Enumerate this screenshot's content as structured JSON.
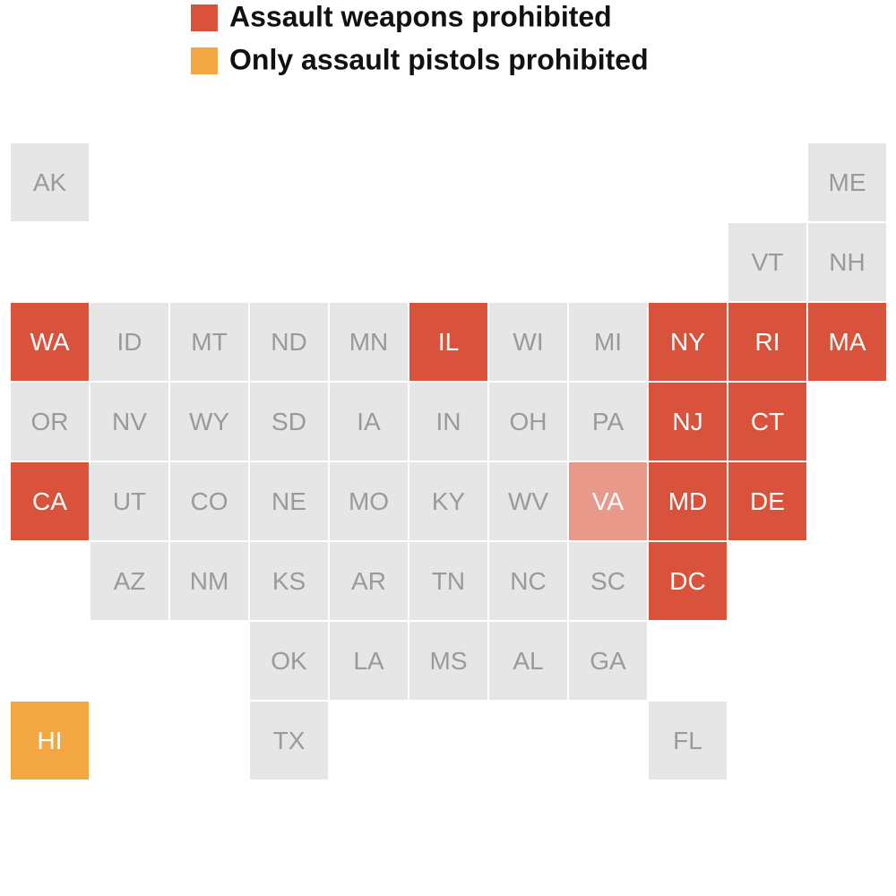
{
  "legend": [
    {
      "label": "Assault weapons prohibited",
      "color": "#d9533c"
    },
    {
      "label": "Only assault pistols prohibited",
      "color": "#f3a743"
    }
  ],
  "tiles": [
    {
      "label": "AK",
      "color": "#e6e6e6"
    },
    {
      "label": "ME",
      "color": "#e6e6e6"
    },
    {
      "label": "VT",
      "color": "#e6e6e6"
    },
    {
      "label": "NH",
      "color": "#e6e6e6"
    },
    {
      "label": "WA",
      "color": "#d9533c"
    },
    {
      "label": "ID",
      "color": "#e6e6e6"
    },
    {
      "label": "MT",
      "color": "#e6e6e6"
    },
    {
      "label": "ND",
      "color": "#e6e6e6"
    },
    {
      "label": "MN",
      "color": "#e6e6e6"
    },
    {
      "label": "IL",
      "color": "#d9533c"
    },
    {
      "label": "WI",
      "color": "#e6e6e6"
    },
    {
      "label": "MI",
      "color": "#e6e6e6"
    },
    {
      "label": "NY",
      "color": "#d9533c"
    },
    {
      "label": "RI",
      "color": "#d9533c"
    },
    {
      "label": "MA",
      "color": "#d9533c"
    },
    {
      "label": "OR",
      "color": "#e6e6e6"
    },
    {
      "label": "NV",
      "color": "#e6e6e6"
    },
    {
      "label": "WY",
      "color": "#e6e6e6"
    },
    {
      "label": "SD",
      "color": "#e6e6e6"
    },
    {
      "label": "IA",
      "color": "#e6e6e6"
    },
    {
      "label": "IN",
      "color": "#e6e6e6"
    },
    {
      "label": "OH",
      "color": "#e6e6e6"
    },
    {
      "label": "PA",
      "color": "#e6e6e6"
    },
    {
      "label": "NJ",
      "color": "#d9533c"
    },
    {
      "label": "CT",
      "color": "#d9533c"
    },
    {
      "label": "CA",
      "color": "#d9533c"
    },
    {
      "label": "UT",
      "color": "#e6e6e6"
    },
    {
      "label": "CO",
      "color": "#e6e6e6"
    },
    {
      "label": "NE",
      "color": "#e6e6e6"
    },
    {
      "label": "MO",
      "color": "#e6e6e6"
    },
    {
      "label": "KY",
      "color": "#e6e6e6"
    },
    {
      "label": "WV",
      "color": "#e6e6e6"
    },
    {
      "label": "VA",
      "color": "#e8998a"
    },
    {
      "label": "MD",
      "color": "#d9533c"
    },
    {
      "label": "DE",
      "color": "#d9533c"
    },
    {
      "label": "AZ",
      "color": "#e6e6e6"
    },
    {
      "label": "NM",
      "color": "#e6e6e6"
    },
    {
      "label": "KS",
      "color": "#e6e6e6"
    },
    {
      "label": "AR",
      "color": "#e6e6e6"
    },
    {
      "label": "TN",
      "color": "#e6e6e6"
    },
    {
      "label": "NC",
      "color": "#e6e6e6"
    },
    {
      "label": "SC",
      "color": "#e6e6e6"
    },
    {
      "label": "DC",
      "color": "#d9533c"
    },
    {
      "label": "OK",
      "color": "#e6e6e6"
    },
    {
      "label": "LA",
      "color": "#e6e6e6"
    },
    {
      "label": "MS",
      "color": "#e6e6e6"
    },
    {
      "label": "AL",
      "color": "#e6e6e6"
    },
    {
      "label": "GA",
      "color": "#e6e6e6"
    },
    {
      "label": "HI",
      "color": "#f3a743"
    },
    {
      "label": "TX",
      "color": "#e6e6e6"
    },
    {
      "label": "FL",
      "color": "#e6e6e6"
    }
  ]
}
